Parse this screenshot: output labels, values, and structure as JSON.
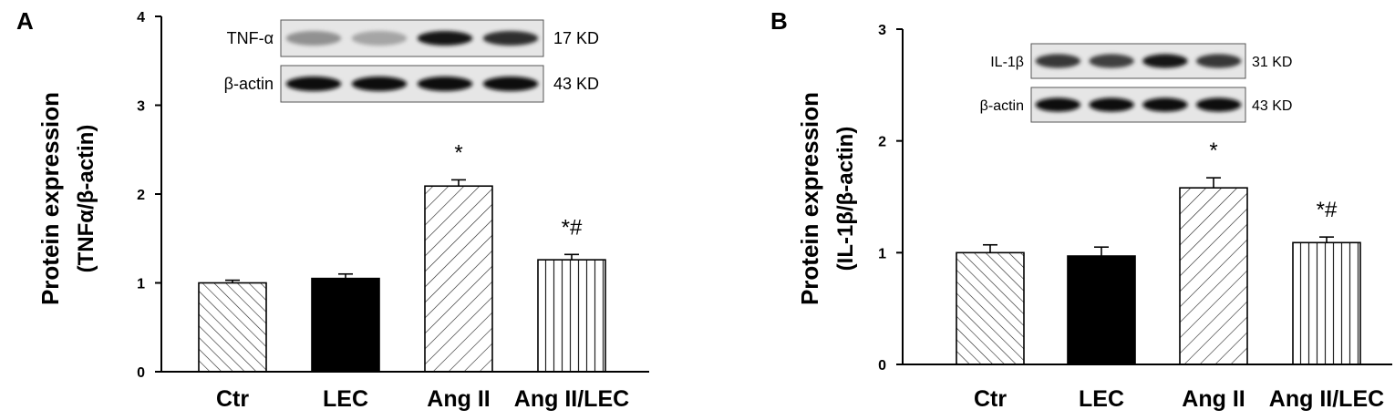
{
  "chart_data": [
    {
      "panel_label": "A",
      "type": "bar",
      "categories": [
        "Ctr",
        "LEC",
        "Ang II",
        "Ang II/LEC"
      ],
      "values": [
        1.0,
        1.05,
        2.09,
        1.26
      ],
      "errors": [
        0.03,
        0.05,
        0.07,
        0.06
      ],
      "annotations": [
        "",
        "",
        "*",
        "*#"
      ],
      "patterns": [
        "diag-left",
        "solid",
        "diag-right",
        "vertical"
      ],
      "ylabel_line1": "Protein expression",
      "ylabel_line2": "(TNFα/β-actin)",
      "yticks": [
        "0",
        "1",
        "2",
        "3",
        "4"
      ],
      "ylim": [
        0,
        4
      ],
      "blot": {
        "rows": [
          {
            "label": "TNF-α",
            "size": "17 KD",
            "intensity": [
              0.35,
              0.25,
              0.95,
              0.85
            ]
          },
          {
            "label": "β-actin",
            "size": "43 KD",
            "intensity": [
              1.0,
              1.0,
              1.0,
              1.0
            ]
          }
        ]
      }
    },
    {
      "panel_label": "B",
      "type": "bar",
      "categories": [
        "Ctr",
        "LEC",
        "Ang II",
        "Ang II/LEC"
      ],
      "values": [
        1.0,
        0.97,
        1.58,
        1.09
      ],
      "errors": [
        0.07,
        0.08,
        0.09,
        0.05
      ],
      "annotations": [
        "",
        "",
        "*",
        "*#"
      ],
      "patterns": [
        "diag-left",
        "solid",
        "diag-right",
        "vertical"
      ],
      "ylabel_line1": "Protein expression",
      "ylabel_line2": "(IL-1β/β-actin)",
      "yticks": [
        "0",
        "1",
        "2",
        "3"
      ],
      "ylim": [
        0,
        3
      ],
      "blot": {
        "rows": [
          {
            "label": "IL-1β",
            "size": "31 KD",
            "intensity": [
              0.8,
              0.75,
              0.95,
              0.8
            ]
          },
          {
            "label": "β-actin",
            "size": "43 KD",
            "intensity": [
              1.0,
              1.0,
              1.0,
              1.0
            ]
          }
        ]
      }
    }
  ]
}
